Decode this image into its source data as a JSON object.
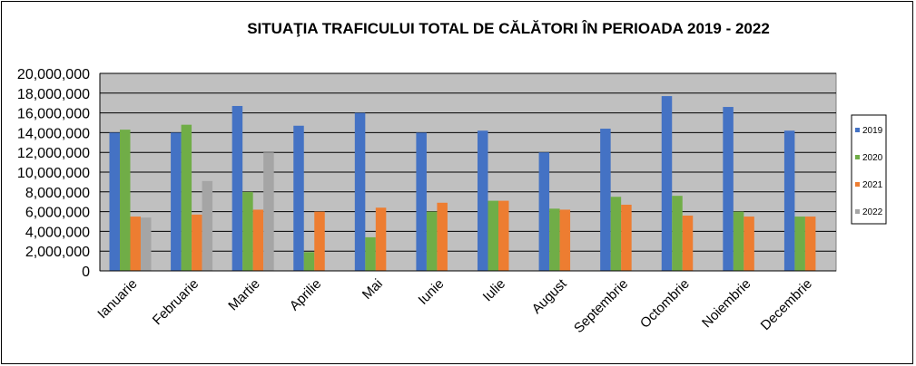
{
  "chart_data": {
    "type": "bar",
    "title": "SITUAŢIA TRAFICULUI TOTAL DE CĂLĂTORI  ÎN PERIOADA 2019 - 2022",
    "categories": [
      "Ianuarie",
      "Februarie",
      "Martie",
      "Aprilie",
      "Mai",
      "Iunie",
      "Iulie",
      "August",
      "Septembrie",
      "Octombrie",
      "Noiembrie",
      "Decembrie"
    ],
    "ylim": [
      0,
      20000000
    ],
    "yticks": [
      "0",
      "2,000,000",
      "4,000,000",
      "6,000,000",
      "8,000,000",
      "10,000,000",
      "12,000,000",
      "14,000,000",
      "16,000,000",
      "18,000,000",
      "20,000,000"
    ],
    "grid": true,
    "legend_position": "right",
    "series": [
      {
        "name": "2019",
        "color": "#4472C4",
        "values": [
          14000000,
          14000000,
          16700000,
          14700000,
          16000000,
          14000000,
          14200000,
          12000000,
          14400000,
          17700000,
          16600000,
          14200000
        ]
      },
      {
        "name": "2020",
        "color": "#70AD47",
        "values": [
          14300000,
          14800000,
          8000000,
          1900000,
          3400000,
          6000000,
          7100000,
          6300000,
          7500000,
          7600000,
          6000000,
          5500000
        ]
      },
      {
        "name": "2021",
        "color": "#ED7D31",
        "values": [
          5500000,
          5700000,
          6200000,
          6000000,
          6400000,
          6900000,
          7100000,
          6200000,
          6700000,
          5600000,
          5500000,
          5500000
        ]
      },
      {
        "name": "2022",
        "color": "#A5A5A5",
        "values": [
          5400000,
          9100000,
          12000000,
          null,
          null,
          null,
          null,
          null,
          null,
          null,
          null,
          null
        ]
      }
    ]
  }
}
